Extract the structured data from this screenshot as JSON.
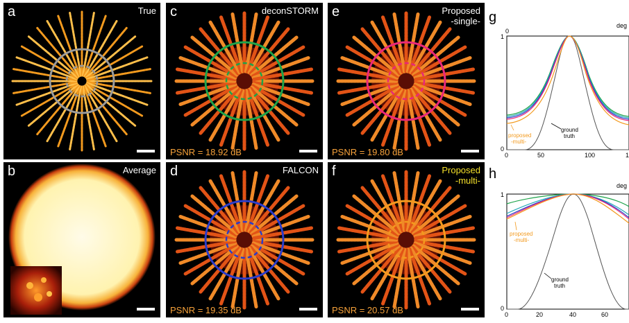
{
  "panels": {
    "a": {
      "letter": "a",
      "title": "True",
      "circle_color": "#9a9a9a"
    },
    "b": {
      "letter": "b",
      "title": "Average"
    },
    "c": {
      "letter": "c",
      "title": "deconSTORM",
      "psnr": "PSNR = 18.92 dB",
      "circle_color": "#1ea34a"
    },
    "d": {
      "letter": "d",
      "title": "FALCON",
      "psnr": "PSNR = 19.35 dB",
      "circle_color": "#2b3cc9"
    },
    "e": {
      "letter": "e",
      "title_line1": "Proposed",
      "title_line2": "-single-",
      "psnr": "PSNR = 19.80 dB",
      "circle_color": "#e8287a"
    },
    "f": {
      "letter": "f",
      "title_line1": "Proposed",
      "title_line2": "-multi-",
      "psnr": "PSNR = 20.57 dB",
      "circle_color": "#f39a1e"
    }
  },
  "plots": {
    "g": {
      "letter": "g",
      "axis_label_top": "deg",
      "x_ticks": [
        "0",
        "50",
        "100",
        "1"
      ],
      "y_ticks": [
        "0",
        "1"
      ],
      "top_tick": "0",
      "ann_proposed_line1": "proposed",
      "ann_proposed_line2": "-multi-",
      "ann_ground_line1": "ground",
      "ann_ground_line2": "truth"
    },
    "h": {
      "letter": "h",
      "axis_label_top": "deg",
      "x_ticks": [
        "0",
        "20",
        "40",
        "60"
      ],
      "y_ticks": [
        "0",
        "1"
      ],
      "ann_proposed_line1": "proposed",
      "ann_proposed_line2": "-multi-",
      "ann_ground_line1": "ground",
      "ann_ground_line2": "truth"
    }
  },
  "colors": {
    "ground_truth": "#555555",
    "deconstorm": "#1ea34a",
    "falcon": "#2b3cc9",
    "proposed_single": "#e8287a",
    "proposed_multi": "#f39a1e",
    "cyan_curve": "#23a8b8",
    "annotation_orange": "#f39a1e"
  }
}
